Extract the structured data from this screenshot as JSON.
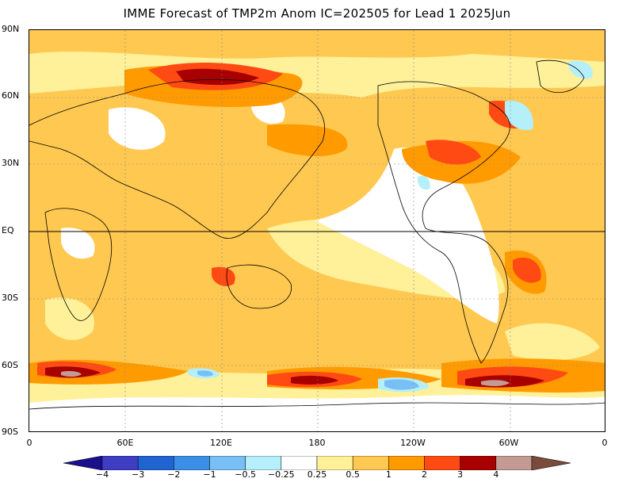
{
  "title": "IMME Forecast of TMP2m Anom IC=202505 for Lead 1 2025Jun",
  "lat_labels": [
    "90N",
    "60N",
    "30N",
    "EQ",
    "30S",
    "60S",
    "90S"
  ],
  "lon_labels": [
    "0",
    "60E",
    "120E",
    "180",
    "120W",
    "60W",
    "0"
  ],
  "colorbar": {
    "tick_labels": [
      "−4",
      "−3",
      "−2",
      "−1",
      "−0.5",
      "−0.25",
      "0.25",
      "0.5",
      "1",
      "2",
      "3",
      "4"
    ],
    "colors": [
      "#1a0f8c",
      "#3f3dc4",
      "#1f64d1",
      "#3c8fe6",
      "#78bff5",
      "#b4effa",
      "#ffffff",
      "#fff09a",
      "#ffc850",
      "#ff9a00",
      "#ff4a14",
      "#a80000",
      "#c49a94",
      "#7a4a3a"
    ]
  },
  "chart_data": {
    "type": "heatmap",
    "title": "IMME Forecast of TMP2m Anom IC=202505 for Lead 1 2025Jun",
    "x_ticks": [
      "0",
      "60E",
      "120E",
      "180",
      "120W",
      "60W",
      "0"
    ],
    "y_ticks": [
      "90N",
      "60N",
      "30N",
      "EQ",
      "30S",
      "60S",
      "90S"
    ],
    "color_levels": [
      -4,
      -3,
      -2,
      -1,
      -0.5,
      -0.25,
      0.25,
      0.5,
      1,
      2,
      3,
      4
    ]
  }
}
